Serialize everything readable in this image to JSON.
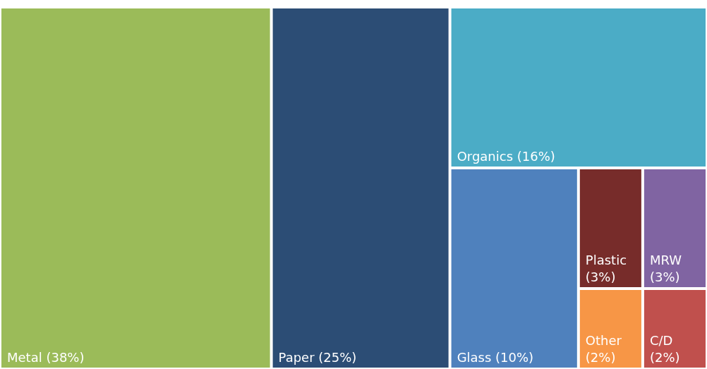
{
  "chart_data": {
    "type": "other",
    "categories": [
      "Metal",
      "Paper",
      "Organics",
      "Glass",
      "Plastic",
      "MRW",
      "Other",
      "C/D"
    ],
    "values": [
      38,
      25,
      16,
      10,
      3,
      3,
      2,
      2
    ],
    "value_labels": [
      "(38%)",
      "(25%)",
      "(16%)",
      "(10%)",
      "(3%)",
      "(3%)",
      "(2%)",
      "(2%)"
    ],
    "colors": [
      "#9bbb59",
      "#2c4d75",
      "#4bacc6",
      "#4f81bd",
      "#772c2a",
      "#8064a2",
      "#f79646",
      "#c0504d"
    ]
  }
}
